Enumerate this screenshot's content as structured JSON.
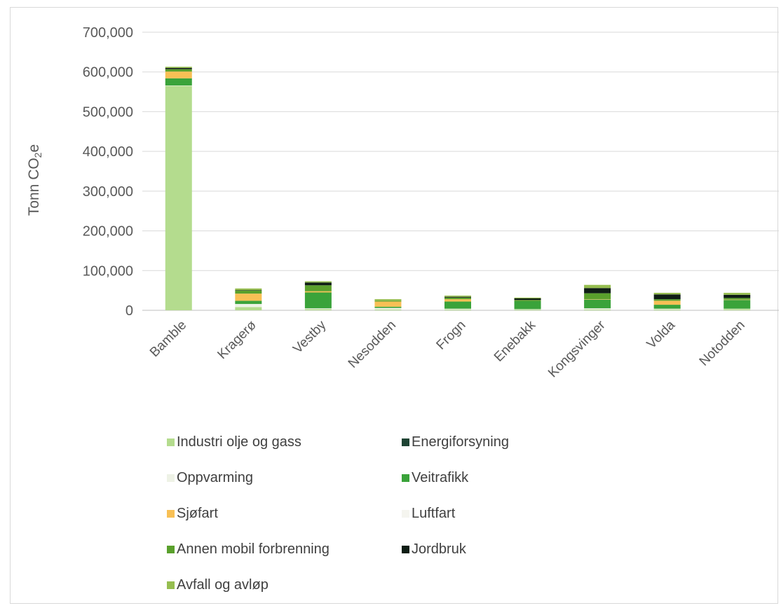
{
  "chart_data": {
    "type": "bar",
    "stacked": true,
    "ylabel_main": "Tonn CO",
    "ylabel_sub": "2",
    "ylabel_tail": "e",
    "ylim": [
      0,
      700000
    ],
    "ytick_values": [
      0,
      100000,
      200000,
      300000,
      400000,
      500000,
      600000,
      700000
    ],
    "ytick_labels": [
      "0",
      "100,000",
      "200,000",
      "300,000",
      "400,000",
      "500,000",
      "600,000",
      "700,000"
    ],
    "grid": true,
    "legend_position": "bottom",
    "categories": [
      "Bamble",
      "Kragerø",
      "Vestby",
      "Nesodden",
      "Frogn",
      "Enebakk",
      "Kongsvinger",
      "Volda",
      "Notodden"
    ],
    "series": [
      {
        "name": "Industri olje og gass",
        "color": "#b4dc8e",
        "values": [
          565000,
          8000,
          3000,
          2000,
          2000,
          2000,
          2000,
          2000,
          3000
        ]
      },
      {
        "name": "Energiforsyning",
        "color": "#1e4434",
        "values": [
          0,
          0,
          0,
          0,
          0,
          0,
          0,
          0,
          0
        ]
      },
      {
        "name": "Oppvarming",
        "color": "#eef2e6",
        "values": [
          1000,
          8000,
          2000,
          4000,
          2000,
          1000,
          3000,
          2000,
          1000
        ]
      },
      {
        "name": "Veitrafikk",
        "color": "#3aa33a",
        "values": [
          18000,
          8000,
          40000,
          3000,
          18000,
          20000,
          22000,
          10000,
          22000
        ]
      },
      {
        "name": "Sjøfart",
        "color": "#f8c055",
        "values": [
          17000,
          18000,
          3000,
          13000,
          6000,
          0,
          1000,
          10000,
          1000
        ]
      },
      {
        "name": "Luftfart",
        "color": "#f5f5ef",
        "values": [
          0,
          0,
          0,
          0,
          0,
          0,
          0,
          0,
          0
        ]
      },
      {
        "name": "Annen mobil forbrenning",
        "color": "#5aa02c",
        "values": [
          6000,
          8000,
          15000,
          2000,
          4000,
          3000,
          15000,
          4000,
          4000
        ]
      },
      {
        "name": "Jordbruk",
        "color": "#0f1d15",
        "values": [
          3000,
          1000,
          7000,
          0,
          2000,
          4000,
          13000,
          12000,
          8000
        ]
      },
      {
        "name": "Avfall og avløp",
        "color": "#96be50",
        "values": [
          3000,
          4000,
          3000,
          4000,
          3000,
          2000,
          8000,
          4000,
          5000
        ]
      }
    ]
  }
}
